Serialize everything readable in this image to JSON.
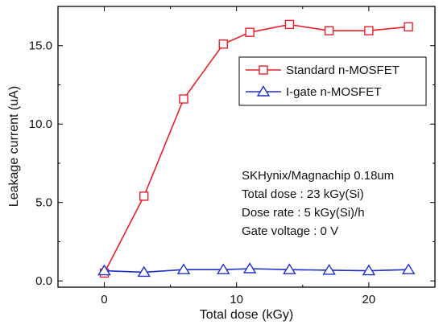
{
  "chart_data": {
    "type": "line",
    "xlabel": "Total dose (kGy)",
    "ylabel": "Leakage current (uA)",
    "xlim": [
      -3.5,
      25
    ],
    "ylim": [
      -0.4,
      17.5
    ],
    "xticks": [
      0,
      10,
      20
    ],
    "yticks": [
      0.0,
      5.0,
      10.0,
      15.0
    ],
    "ytick_labels": [
      "0.0",
      "5.0",
      "10.0",
      "15.0"
    ],
    "x": [
      0,
      3,
      6,
      9,
      11,
      14,
      17,
      20,
      23
    ],
    "series": [
      {
        "name": "Standard n-MOSFET",
        "color": "#e8202a",
        "marker": "square",
        "values": [
          0.5,
          5.4,
          11.6,
          15.1,
          15.85,
          16.35,
          15.95,
          15.95,
          16.2
        ]
      },
      {
        "name": "I-gate n-MOSFET",
        "color": "#1e2fc8",
        "marker": "triangle",
        "values": [
          0.65,
          0.55,
          0.72,
          0.72,
          0.78,
          0.72,
          0.68,
          0.65,
          0.72
        ]
      }
    ],
    "legend_position": "top-right",
    "grid": false,
    "annotation_lines": [
      "SKHynix/Magnachip 0.18um",
      "Total dose : 23 kGy(Si)",
      "Dose rate : 5 kGy(Si)/h",
      "Gate voltage : 0 V"
    ]
  }
}
